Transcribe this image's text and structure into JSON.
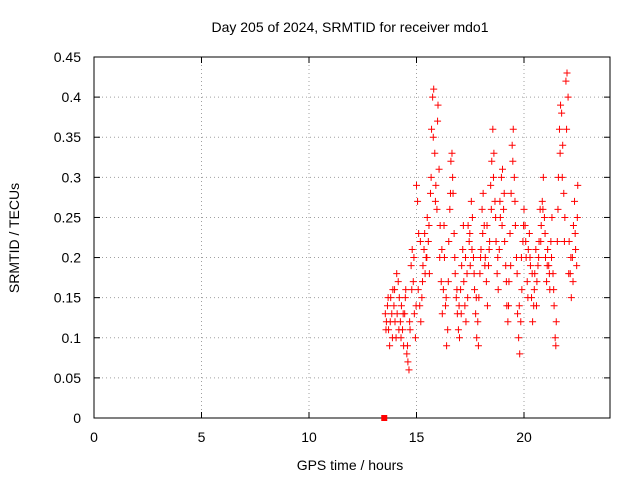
{
  "chart_data": {
    "type": "scatter",
    "title": "Day 205 of 2024, SRMTID for receiver mdo1",
    "xlabel": "GPS time / hours",
    "ylabel": "SRMTID / TECUs",
    "xlim": [
      0,
      24
    ],
    "ylim": [
      0,
      0.45
    ],
    "x_ticks": [
      0,
      5,
      10,
      15,
      20
    ],
    "x_tick_labels": [
      "0",
      "5",
      "10",
      "15",
      "20"
    ],
    "y_ticks": [
      0,
      0.05,
      0.1,
      0.15,
      0.2,
      0.25,
      0.3,
      0.35,
      0.4,
      0.45
    ],
    "y_tick_labels": [
      "0",
      "0.05",
      "0.1",
      "0.15",
      "0.2",
      "0.25",
      "0.3",
      "0.35",
      "0.4",
      "0.45"
    ],
    "grid": true,
    "marker": "plus",
    "color": "#ff0000",
    "square_markers": [
      {
        "x": 13.5,
        "y": 0.0
      }
    ],
    "series": [
      {
        "name": "SRMTID",
        "points": [
          [
            13.55,
            0.13
          ],
          [
            13.6,
            0.12
          ],
          [
            13.65,
            0.14
          ],
          [
            13.7,
            0.11
          ],
          [
            13.75,
            0.09
          ],
          [
            13.8,
            0.15
          ],
          [
            13.85,
            0.13
          ],
          [
            13.9,
            0.16
          ],
          [
            13.95,
            0.14
          ],
          [
            14.0,
            0.12
          ],
          [
            14.05,
            0.1
          ],
          [
            14.1,
            0.13
          ],
          [
            14.15,
            0.17
          ],
          [
            14.2,
            0.15
          ],
          [
            14.25,
            0.12
          ],
          [
            14.3,
            0.14
          ],
          [
            14.35,
            0.11
          ],
          [
            14.4,
            0.09
          ],
          [
            14.45,
            0.13
          ],
          [
            14.5,
            0.16
          ],
          [
            14.55,
            0.08
          ],
          [
            14.6,
            0.07
          ],
          [
            14.65,
            0.06
          ],
          [
            14.7,
            0.11
          ],
          [
            14.75,
            0.19
          ],
          [
            14.8,
            0.21
          ],
          [
            14.85,
            0.17
          ],
          [
            14.9,
            0.13
          ],
          [
            14.95,
            0.1
          ],
          [
            15.0,
            0.29
          ],
          [
            15.05,
            0.27
          ],
          [
            15.1,
            0.23
          ],
          [
            15.15,
            0.14
          ],
          [
            15.2,
            0.12
          ],
          [
            15.25,
            0.15
          ],
          [
            15.3,
            0.19
          ],
          [
            15.35,
            0.21
          ],
          [
            15.4,
            0.18
          ],
          [
            15.45,
            0.2
          ],
          [
            15.5,
            0.25
          ],
          [
            15.55,
            0.22
          ],
          [
            15.6,
            0.18
          ],
          [
            15.65,
            0.28
          ],
          [
            15.7,
            0.36
          ],
          [
            15.75,
            0.4
          ],
          [
            15.8,
            0.41
          ],
          [
            15.85,
            0.33
          ],
          [
            15.9,
            0.29
          ],
          [
            15.95,
            0.26
          ],
          [
            16.0,
            0.39
          ],
          [
            16.05,
            0.31
          ],
          [
            16.1,
            0.24
          ],
          [
            16.15,
            0.17
          ],
          [
            16.2,
            0.13
          ],
          [
            16.25,
            0.16
          ],
          [
            16.3,
            0.2
          ],
          [
            16.35,
            0.14
          ],
          [
            16.4,
            0.09
          ],
          [
            16.45,
            0.11
          ],
          [
            16.5,
            0.22
          ],
          [
            16.55,
            0.26
          ],
          [
            16.6,
            0.32
          ],
          [
            16.65,
            0.33
          ],
          [
            16.7,
            0.28
          ],
          [
            16.75,
            0.23
          ],
          [
            16.8,
            0.18
          ],
          [
            16.85,
            0.15
          ],
          [
            16.9,
            0.13
          ],
          [
            16.95,
            0.11
          ],
          [
            17.0,
            0.1
          ],
          [
            17.05,
            0.16
          ],
          [
            17.1,
            0.19
          ],
          [
            17.15,
            0.21
          ],
          [
            17.2,
            0.17
          ],
          [
            17.25,
            0.14
          ],
          [
            17.3,
            0.12
          ],
          [
            17.35,
            0.18
          ],
          [
            17.4,
            0.24
          ],
          [
            17.45,
            0.22
          ],
          [
            17.5,
            0.19
          ],
          [
            17.55,
            0.27
          ],
          [
            17.6,
            0.25
          ],
          [
            17.65,
            0.2
          ],
          [
            17.7,
            0.16
          ],
          [
            17.75,
            0.13
          ],
          [
            17.8,
            0.1
          ],
          [
            17.85,
            0.12
          ],
          [
            17.9,
            0.15
          ],
          [
            17.95,
            0.18
          ],
          [
            18.0,
            0.21
          ],
          [
            18.05,
            0.26
          ],
          [
            18.1,
            0.28
          ],
          [
            18.15,
            0.24
          ],
          [
            18.2,
            0.2
          ],
          [
            18.25,
            0.17
          ],
          [
            18.3,
            0.14
          ],
          [
            18.35,
            0.19
          ],
          [
            18.4,
            0.22
          ],
          [
            18.45,
            0.29
          ],
          [
            18.5,
            0.32
          ],
          [
            18.55,
            0.36
          ],
          [
            18.6,
            0.33
          ],
          [
            18.65,
            0.27
          ],
          [
            18.7,
            0.22
          ],
          [
            18.75,
            0.18
          ],
          [
            18.8,
            0.16
          ],
          [
            18.85,
            0.21
          ],
          [
            18.9,
            0.25
          ],
          [
            18.95,
            0.3
          ],
          [
            19.0,
            0.31
          ],
          [
            19.05,
            0.26
          ],
          [
            19.1,
            0.22
          ],
          [
            19.15,
            0.19
          ],
          [
            19.2,
            0.14
          ],
          [
            19.25,
            0.12
          ],
          [
            19.3,
            0.17
          ],
          [
            19.35,
            0.23
          ],
          [
            19.4,
            0.28
          ],
          [
            19.45,
            0.34
          ],
          [
            19.5,
            0.36
          ],
          [
            19.55,
            0.3
          ],
          [
            19.6,
            0.24
          ],
          [
            19.65,
            0.2
          ],
          [
            19.7,
            0.13
          ],
          [
            19.75,
            0.1
          ],
          [
            19.8,
            0.08
          ],
          [
            19.85,
            0.12
          ],
          [
            19.9,
            0.16
          ],
          [
            19.95,
            0.22
          ],
          [
            20.0,
            0.26
          ],
          [
            20.05,
            0.24
          ],
          [
            20.1,
            0.2
          ],
          [
            20.15,
            0.17
          ],
          [
            20.2,
            0.21
          ],
          [
            20.25,
            0.23
          ],
          [
            20.3,
            0.19
          ],
          [
            20.35,
            0.15
          ],
          [
            20.4,
            0.12
          ],
          [
            20.45,
            0.14
          ],
          [
            20.5,
            0.18
          ],
          [
            20.55,
            0.21
          ],
          [
            20.6,
            0.17
          ],
          [
            20.65,
            0.19
          ],
          [
            20.7,
            0.22
          ],
          [
            20.75,
            0.26
          ],
          [
            20.8,
            0.24
          ],
          [
            20.85,
            0.27
          ],
          [
            20.9,
            0.3
          ],
          [
            20.95,
            0.25
          ],
          [
            21.0,
            0.2
          ],
          [
            21.05,
            0.17
          ],
          [
            21.1,
            0.21
          ],
          [
            21.15,
            0.19
          ],
          [
            21.2,
            0.16
          ],
          [
            21.25,
            0.22
          ],
          [
            21.3,
            0.25
          ],
          [
            21.35,
            0.18
          ],
          [
            21.4,
            0.14
          ],
          [
            21.45,
            0.1
          ],
          [
            21.5,
            0.12
          ],
          [
            21.55,
            0.22
          ],
          [
            21.6,
            0.3
          ],
          [
            21.65,
            0.36
          ],
          [
            21.7,
            0.39
          ],
          [
            21.75,
            0.38
          ],
          [
            21.8,
            0.34
          ],
          [
            21.85,
            0.28
          ],
          [
            21.9,
            0.25
          ],
          [
            21.95,
            0.42
          ],
          [
            22.0,
            0.43
          ],
          [
            22.05,
            0.4
          ],
          [
            22.1,
            0.22
          ],
          [
            22.15,
            0.18
          ],
          [
            22.2,
            0.15
          ],
          [
            22.25,
            0.2
          ],
          [
            22.3,
            0.24
          ],
          [
            22.35,
            0.27
          ],
          [
            22.4,
            0.21
          ],
          [
            22.45,
            0.19
          ],
          [
            22.5,
            0.29
          ],
          [
            13.58,
            0.11
          ],
          [
            13.68,
            0.15
          ],
          [
            13.78,
            0.12
          ],
          [
            13.88,
            0.1
          ],
          [
            13.98,
            0.16
          ],
          [
            14.08,
            0.18
          ],
          [
            14.18,
            0.11
          ],
          [
            14.28,
            0.1
          ],
          [
            14.38,
            0.13
          ],
          [
            14.48,
            0.15
          ],
          [
            14.58,
            0.09
          ],
          [
            14.68,
            0.12
          ],
          [
            14.78,
            0.16
          ],
          [
            14.88,
            0.2
          ],
          [
            14.98,
            0.14
          ],
          [
            15.08,
            0.16
          ],
          [
            15.18,
            0.22
          ],
          [
            15.28,
            0.17
          ],
          [
            15.38,
            0.23
          ],
          [
            15.48,
            0.2
          ],
          [
            15.58,
            0.24
          ],
          [
            15.68,
            0.3
          ],
          [
            15.78,
            0.35
          ],
          [
            15.88,
            0.27
          ],
          [
            15.98,
            0.37
          ],
          [
            16.08,
            0.2
          ],
          [
            16.18,
            0.21
          ],
          [
            16.28,
            0.24
          ],
          [
            16.38,
            0.15
          ],
          [
            16.48,
            0.17
          ],
          [
            16.58,
            0.28
          ],
          [
            16.68,
            0.3
          ],
          [
            16.78,
            0.2
          ],
          [
            16.88,
            0.16
          ],
          [
            16.98,
            0.14
          ],
          [
            17.08,
            0.13
          ],
          [
            17.18,
            0.24
          ],
          [
            17.28,
            0.2
          ],
          [
            17.38,
            0.15
          ],
          [
            17.48,
            0.23
          ],
          [
            17.58,
            0.21
          ],
          [
            17.68,
            0.18
          ],
          [
            17.78,
            0.15
          ],
          [
            17.88,
            0.09
          ],
          [
            17.98,
            0.2
          ],
          [
            18.08,
            0.23
          ],
          [
            18.18,
            0.19
          ],
          [
            18.28,
            0.24
          ],
          [
            18.38,
            0.21
          ],
          [
            18.48,
            0.26
          ],
          [
            18.58,
            0.3
          ],
          [
            18.68,
            0.25
          ],
          [
            18.78,
            0.2
          ],
          [
            18.88,
            0.27
          ],
          [
            18.98,
            0.24
          ],
          [
            19.08,
            0.28
          ],
          [
            19.18,
            0.17
          ],
          [
            19.28,
            0.14
          ],
          [
            19.38,
            0.19
          ],
          [
            19.48,
            0.32
          ],
          [
            19.58,
            0.27
          ],
          [
            19.68,
            0.18
          ],
          [
            19.78,
            0.14
          ],
          [
            19.88,
            0.2
          ],
          [
            19.98,
            0.24
          ],
          [
            20.08,
            0.22
          ],
          [
            20.18,
            0.15
          ],
          [
            20.28,
            0.2
          ],
          [
            20.38,
            0.18
          ],
          [
            20.48,
            0.16
          ],
          [
            20.58,
            0.14
          ],
          [
            20.68,
            0.2
          ],
          [
            20.78,
            0.22
          ],
          [
            20.88,
            0.26
          ],
          [
            20.98,
            0.23
          ],
          [
            21.08,
            0.19
          ],
          [
            21.18,
            0.18
          ],
          [
            21.28,
            0.2
          ],
          [
            21.38,
            0.16
          ],
          [
            21.48,
            0.09
          ],
          [
            21.58,
            0.26
          ],
          [
            21.68,
            0.33
          ],
          [
            21.78,
            0.3
          ],
          [
            21.88,
            0.22
          ],
          [
            21.98,
            0.36
          ],
          [
            22.08,
            0.18
          ],
          [
            22.18,
            0.2
          ],
          [
            22.28,
            0.17
          ],
          [
            22.38,
            0.23
          ],
          [
            22.48,
            0.25
          ]
        ]
      }
    ]
  }
}
